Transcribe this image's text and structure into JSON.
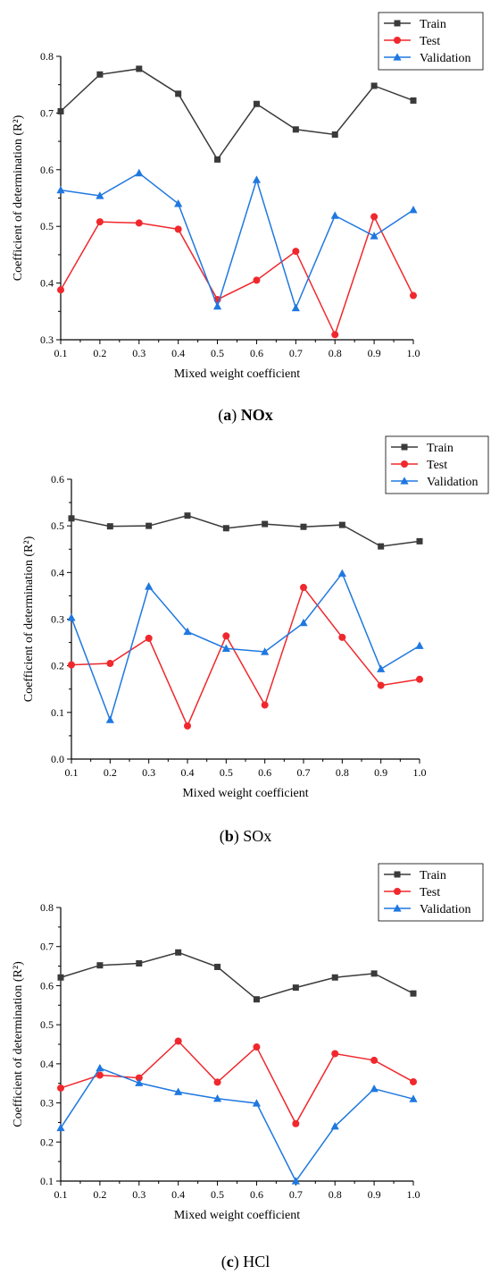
{
  "colors": {
    "train": "#3a3a3a",
    "test": "#f0282d",
    "validation": "#1f78e0",
    "axis": "#000000"
  },
  "chart_data": [
    {
      "type": "line",
      "xlabel": "Mixed weight coefficient",
      "ylabel": "Coefficient of determination (R²)",
      "caption_label": "(a)",
      "caption_name": "NOx",
      "xlim": [
        0.1,
        1.0
      ],
      "ylim": [
        0.3,
        0.8
      ],
      "x_ticks": [
        "0.1",
        "0.2",
        "0.3",
        "0.4",
        "0.5",
        "0.6",
        "0.7",
        "0.8",
        "0.9",
        "1.0"
      ],
      "y_ticks": [
        "0.3",
        "0.4",
        "0.5",
        "0.6",
        "0.7",
        "0.8"
      ],
      "x": [
        0.1,
        0.2,
        0.3,
        0.4,
        0.5,
        0.6,
        0.7,
        0.8,
        0.9,
        1.0
      ],
      "legend_position": "top-right",
      "series": [
        {
          "name": "Train",
          "marker": "square",
          "color_key": "train",
          "values": [
            0.703,
            0.768,
            0.778,
            0.734,
            0.618,
            0.716,
            0.671,
            0.662,
            0.748,
            0.722
          ]
        },
        {
          "name": "Test",
          "marker": "circle",
          "color_key": "test",
          "values": [
            0.388,
            0.508,
            0.506,
            0.495,
            0.371,
            0.405,
            0.456,
            0.309,
            0.517,
            0.378
          ]
        },
        {
          "name": "Validation",
          "marker": "triangle",
          "color_key": "validation",
          "values": [
            0.564,
            0.554,
            0.594,
            0.54,
            0.359,
            0.582,
            0.356,
            0.519,
            0.483,
            0.529
          ]
        }
      ]
    },
    {
      "type": "line",
      "xlabel": "Mixed weight coefficient",
      "ylabel": "Coefficient of determination (R²)",
      "caption_label": "(b)",
      "caption_name": "SOx",
      "xlim": [
        0.1,
        1.0
      ],
      "ylim": [
        0.0,
        0.6
      ],
      "x_ticks": [
        "0.1",
        "0.2",
        "0.3",
        "0.4",
        "0.5",
        "0.6",
        "0.7",
        "0.8",
        "0.9",
        "1.0"
      ],
      "y_ticks": [
        "0.0",
        "0.1",
        "0.2",
        "0.3",
        "0.4",
        "0.5",
        "0.6"
      ],
      "x": [
        0.1,
        0.2,
        0.3,
        0.4,
        0.5,
        0.6,
        0.7,
        0.8,
        0.9,
        1.0
      ],
      "legend_position": "top-right",
      "series": [
        {
          "name": "Train",
          "marker": "square",
          "color_key": "train",
          "values": [
            0.516,
            0.499,
            0.5,
            0.522,
            0.495,
            0.504,
            0.498,
            0.502,
            0.456,
            0.467
          ]
        },
        {
          "name": "Test",
          "marker": "circle",
          "color_key": "test",
          "values": [
            0.202,
            0.205,
            0.259,
            0.071,
            0.264,
            0.116,
            0.368,
            0.261,
            0.158,
            0.171
          ]
        },
        {
          "name": "Validation",
          "marker": "triangle",
          "color_key": "validation",
          "values": [
            0.303,
            0.084,
            0.37,
            0.273,
            0.237,
            0.23,
            0.292,
            0.398,
            0.193,
            0.243
          ]
        }
      ]
    },
    {
      "type": "line",
      "xlabel": "Mixed weight coefficient",
      "ylabel": "Coefficient of determination (R²)",
      "caption_label": "(c)",
      "caption_name": "HCl",
      "xlim": [
        0.1,
        1.0
      ],
      "ylim": [
        0.1,
        0.8
      ],
      "x_ticks": [
        "0.1",
        "0.2",
        "0.3",
        "0.4",
        "0.5",
        "0.6",
        "0.7",
        "0.8",
        "0.9",
        "1.0"
      ],
      "y_ticks": [
        "0.1",
        "0.2",
        "0.3",
        "0.4",
        "0.5",
        "0.6",
        "0.7",
        "0.8"
      ],
      "x": [
        0.1,
        0.2,
        0.3,
        0.4,
        0.5,
        0.6,
        0.7,
        0.8,
        0.9,
        1.0
      ],
      "legend_position": "top-right",
      "series": [
        {
          "name": "Train",
          "marker": "square",
          "color_key": "train",
          "values": [
            0.621,
            0.652,
            0.657,
            0.685,
            0.648,
            0.565,
            0.595,
            0.621,
            0.631,
            0.58
          ]
        },
        {
          "name": "Test",
          "marker": "circle",
          "color_key": "test",
          "values": [
            0.338,
            0.371,
            0.364,
            0.458,
            0.353,
            0.443,
            0.247,
            0.426,
            0.409,
            0.354
          ]
        },
        {
          "name": "Validation",
          "marker": "triangle",
          "color_key": "validation",
          "values": [
            0.236,
            0.389,
            0.351,
            0.328,
            0.311,
            0.299,
            0.1,
            0.24,
            0.336,
            0.31
          ]
        }
      ]
    }
  ]
}
